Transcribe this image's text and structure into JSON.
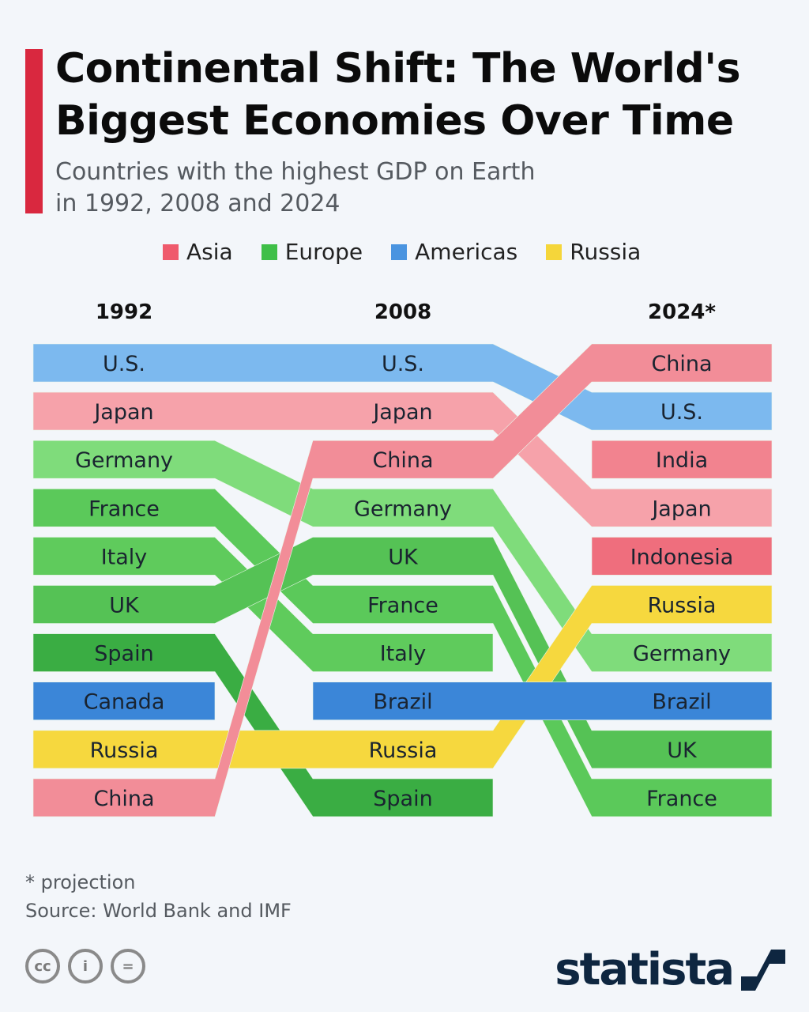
{
  "title_line1": "Continental Shift: The World's",
  "title_line2": "Biggest Economies Over Time",
  "subtitle_line1": "Countries with the highest GDP on Earth",
  "subtitle_line2": "in 1992, 2008 and 2024",
  "legend": [
    {
      "label": "Asia",
      "color": "#ef5a6c"
    },
    {
      "label": "Europe",
      "color": "#3fbf48"
    },
    {
      "label": "Americas",
      "color": "#4a94e0"
    },
    {
      "label": "Russia",
      "color": "#f5d63a"
    }
  ],
  "footnote": "* projection",
  "source": "Source: World Bank and IMF",
  "brand": "statista",
  "chart_data": {
    "type": "bump",
    "years": [
      "1992",
      "2008",
      "2024*"
    ],
    "rankings": {
      "1992": [
        "U.S.",
        "Japan",
        "Germany",
        "France",
        "Italy",
        "UK",
        "Spain",
        "Canada",
        "Russia",
        "China"
      ],
      "2008": [
        "U.S.",
        "Japan",
        "China",
        "Germany",
        "UK",
        "France",
        "Italy",
        "Brazil",
        "Russia",
        "Spain"
      ],
      "2024": [
        "China",
        "U.S.",
        "India",
        "Japan",
        "Indonesia",
        "Russia",
        "Germany",
        "Brazil",
        "UK",
        "France"
      ]
    },
    "regions": {
      "U.S.": "Americas",
      "Canada": "Americas",
      "Brazil": "Americas",
      "Japan": "Asia",
      "China": "Asia",
      "India": "Asia",
      "Indonesia": "Asia",
      "Germany": "Europe",
      "France": "Europe",
      "Italy": "Europe",
      "UK": "Europe",
      "Spain": "Europe",
      "Russia": "Russia"
    },
    "colors": {
      "U.S.": "#7cb9ef",
      "Canada": "#3b86d8",
      "Brazil": "#3b86d8",
      "Japan": "#f6a2aa",
      "China": "#f28d98",
      "India": "#f2838f",
      "Indonesia": "#ef6e7d",
      "Germany": "#7fdc7b",
      "France": "#5bc95a",
      "Italy": "#5fcb5c",
      "UK": "#55c255",
      "Spain": "#3aad43",
      "Russia": "#f6d83e"
    }
  }
}
